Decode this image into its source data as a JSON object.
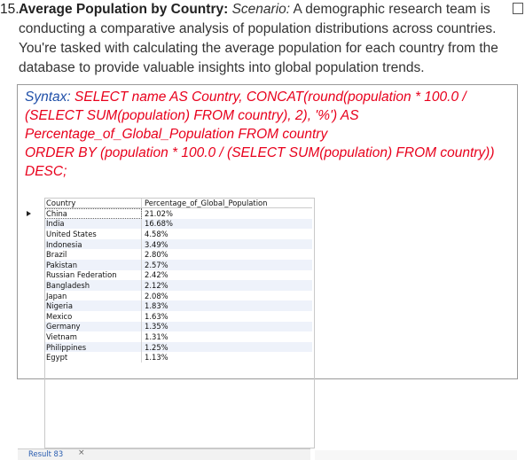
{
  "question": {
    "number": "15.",
    "title": "Average Population by Country:",
    "scenario_label": "Scenario:",
    "scenario_lines": [
      "A demographic research team is",
      "conducting a comparative analysis of population distributions across countries.",
      "You're tasked with calculating the average population for each country from the",
      "database to provide valuable insights into global population trends."
    ]
  },
  "syntax": {
    "label": "Syntax:",
    "lines": [
      "SELECT name AS Country, CONCAT(round(population * 100.0 /",
      "(SELECT SUM(population) FROM country), 2), '%') AS",
      "Percentage_of_Global_Population FROM country",
      "ORDER BY (population * 100.0 / (SELECT SUM(population) FROM country))",
      "DESC;"
    ]
  },
  "result_grid": {
    "columns": [
      "Country",
      "Percentage_of_Global_Population"
    ],
    "rows": [
      [
        "China",
        "21.02%"
      ],
      [
        "India",
        "16.68%"
      ],
      [
        "United States",
        "4.58%"
      ],
      [
        "Indonesia",
        "3.49%"
      ],
      [
        "Brazil",
        "2.80%"
      ],
      [
        "Pakistan",
        "2.57%"
      ],
      [
        "Russian Federation",
        "2.42%"
      ],
      [
        "Bangladesh",
        "2.12%"
      ],
      [
        "Japan",
        "2.08%"
      ],
      [
        "Nigeria",
        "1.83%"
      ],
      [
        "Mexico",
        "1.63%"
      ],
      [
        "Germany",
        "1.35%"
      ],
      [
        "Vietnam",
        "1.31%"
      ],
      [
        "Philippines",
        "1.25%"
      ],
      [
        "Egypt",
        "1.13%"
      ]
    ]
  },
  "result_tab": {
    "label": "Result 83",
    "close": "×"
  }
}
